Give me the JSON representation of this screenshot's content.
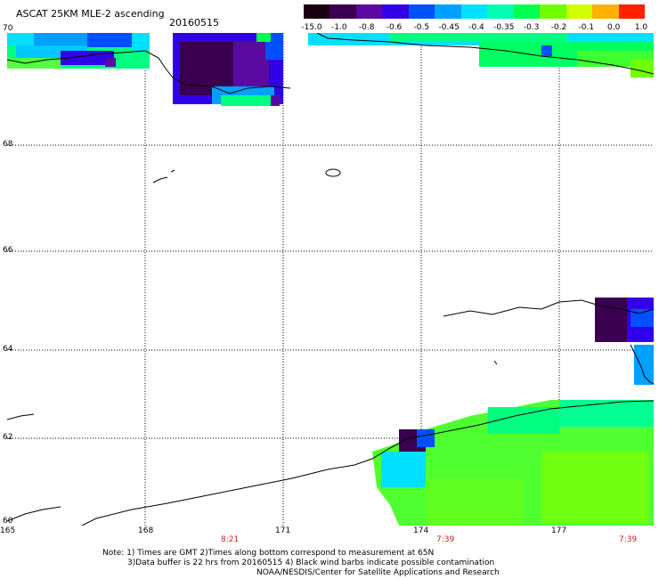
{
  "title": "ASCAT 25KM MLE-2 ascending",
  "date": "20160515",
  "colorbar": {
    "labels": [
      "-15.0",
      "-1.0",
      "-0.8",
      "-0.6",
      "-0.5",
      "-0.45",
      "-0.4",
      "-0.35",
      "-0.3",
      "-0.2",
      "-0.1",
      "0.0",
      "1.0"
    ],
    "colors": [
      "#1a0010",
      "#3a0050",
      "#5a0aa0",
      "#3200e8",
      "#0050ff",
      "#00a0ff",
      "#00e0ff",
      "#00ffb0",
      "#00ff50",
      "#70ff00",
      "#d0ff00",
      "#ffb000",
      "#ff2000"
    ]
  },
  "latitude_labels": [
    "70",
    "68",
    "66",
    "64",
    "62",
    "60"
  ],
  "longitude_labels": [
    "165",
    "168",
    "171",
    "174",
    "177"
  ],
  "time_labels": [
    "8:21",
    "7:39",
    "7:39"
  ],
  "notes": {
    "line1": "Note: 1) Times are GMT 2)Times along bottom correspond to measurement at 65N",
    "line2": "3)Data buffer is 22 hrs from 20160515 4) Black wind barbs indicate possible contamination",
    "line3": "NOAA/NESDIS/Center for Satellite Applications and Research"
  }
}
